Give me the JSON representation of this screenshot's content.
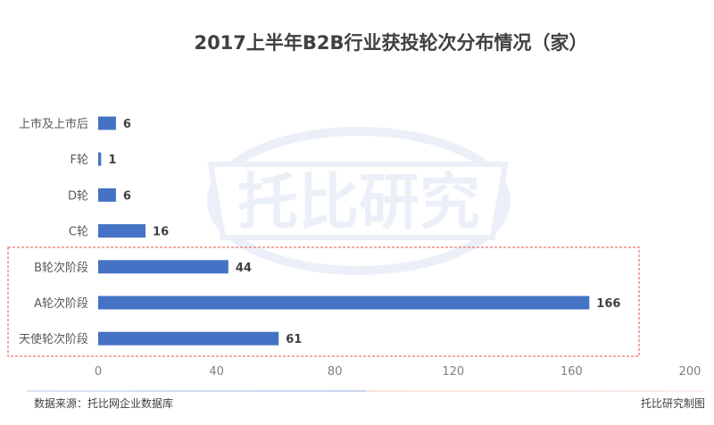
{
  "watermark": {
    "text": "托比研究"
  },
  "footer": {
    "source": "数据来源：托比网企业数据库",
    "credit": "托比研究制图"
  },
  "colors": {
    "bar": "#4472c4",
    "highlight_box": "#e8534a"
  },
  "chart_data": {
    "type": "bar",
    "orientation": "horizontal",
    "title": "2017上半年B2B行业获投轮次分布情况（家）",
    "categories": [
      "上市及上市后",
      "F轮",
      "D轮",
      "C轮",
      "B轮次阶段",
      "A轮次阶段",
      "天使轮次阶段"
    ],
    "values": [
      6,
      1,
      6,
      16,
      44,
      166,
      61
    ],
    "xlim": [
      0,
      200
    ],
    "xticks": [
      0,
      40,
      80,
      120,
      160,
      200
    ],
    "grid": false,
    "legend": "none",
    "highlighted_categories": [
      "B轮次阶段",
      "A轮次阶段",
      "天使轮次阶段"
    ]
  }
}
